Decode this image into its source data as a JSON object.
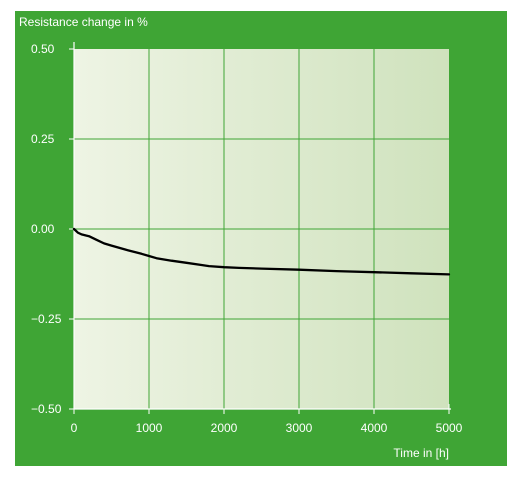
{
  "colors": {
    "panel_background": "#3fa535",
    "plot_gradient_left": "#eef4e4",
    "plot_gradient_right": "#cfe2bd",
    "grid": "#3fa535",
    "axis": "#ffffff",
    "line": "#000000",
    "text": "#ffffff"
  },
  "chart_data": {
    "type": "line",
    "title": "",
    "ylabel": "Resistance change in %",
    "xlabel": "Time in [h]",
    "xlim": [
      0,
      5000
    ],
    "ylim": [
      -0.5,
      0.5
    ],
    "x_ticks": [
      0,
      1000,
      2000,
      3000,
      4000,
      5000
    ],
    "x_tick_labels": [
      "0",
      "1000",
      "2000",
      "3000",
      "4000",
      "5000"
    ],
    "y_ticks": [
      0.5,
      0.25,
      0.0,
      -0.25,
      -0.5
    ],
    "y_tick_labels": [
      "0.50",
      "0.25",
      "0.00",
      "−0.25",
      "−0.50"
    ],
    "grid": true,
    "legend": "none",
    "series": [
      {
        "x": [
          0,
          50,
          100,
          200,
          300,
          400,
          500,
          700,
          900,
          1000,
          1100,
          1300,
          1500,
          1700,
          1800,
          2000,
          2200,
          2500,
          3000,
          3500,
          4000,
          4500,
          5000
        ],
        "values": [
          0.0,
          -0.01,
          -0.015,
          -0.02,
          -0.03,
          -0.04,
          -0.046,
          -0.058,
          -0.069,
          -0.075,
          -0.081,
          -0.088,
          -0.094,
          -0.1,
          -0.103,
          -0.106,
          -0.108,
          -0.11,
          -0.113,
          -0.117,
          -0.12,
          -0.123,
          -0.126
        ]
      }
    ]
  }
}
